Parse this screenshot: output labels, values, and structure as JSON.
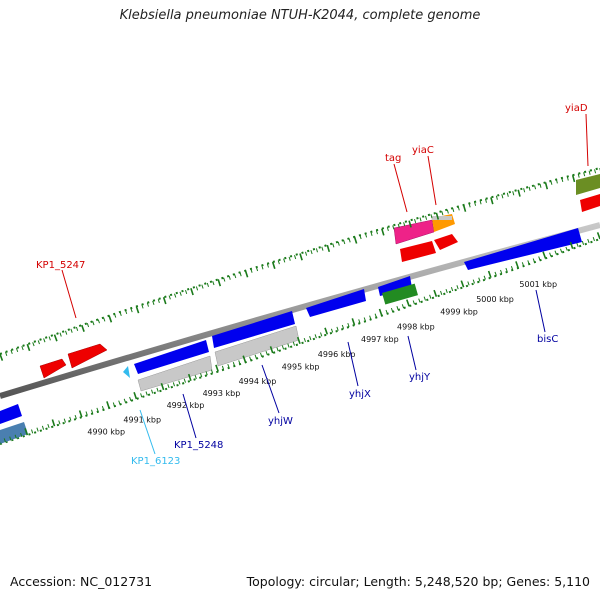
{
  "title": "Klebsiella pneumoniae NTUH-K2044, complete genome",
  "footer": {
    "accession": "Accession: NC_012731",
    "summary": "Topology: circular; Length: 5,248,520 bp; Genes: 5,110"
  },
  "ruler_labels": [
    {
      "text": "4990 kbp",
      "tick": 12
    },
    {
      "text": "4991 kbp",
      "tick": 17
    },
    {
      "text": "4992 kbp",
      "tick": 23
    },
    {
      "text": "4993 kbp",
      "tick": 28
    },
    {
      "text": "4994 kbp",
      "tick": 33
    },
    {
      "text": "4995 kbp",
      "tick": 39
    },
    {
      "text": "4996 kbp",
      "tick": 44
    },
    {
      "text": "4997 kbp",
      "tick": 50
    },
    {
      "text": "4998 kbp",
      "tick": 55
    },
    {
      "text": "4999 kbp",
      "tick": 61
    },
    {
      "text": "5000 kbp",
      "tick": 66
    },
    {
      "text": "5001 kbp",
      "tick": 72
    }
  ],
  "gene_labels": [
    {
      "text": "KP1_5247",
      "color": "#d40000"
    },
    {
      "text": "tag",
      "color": "#d40000"
    },
    {
      "text": "yiaC",
      "color": "#d40000"
    },
    {
      "text": "yiaD",
      "color": "#d40000"
    },
    {
      "text": "KP1_6123",
      "color": "#33bbee"
    },
    {
      "text": "KP1_5248",
      "color": "#0000a0"
    },
    {
      "text": "yhjW",
      "color": "#0000a0"
    },
    {
      "text": "yhjX",
      "color": "#0000a0"
    },
    {
      "text": "yhjY",
      "color": "#0000a0"
    },
    {
      "text": "bisC",
      "color": "#0000a0"
    }
  ],
  "colors": {
    "forward_gene": "#ee0000",
    "reverse_gene": "#0000ee",
    "pseudo_gene": "#c8c8c8",
    "backbone": "#888888",
    "tick": "#1a7a1a",
    "tag_gene": "#ee2288",
    "yiaC_gene": "#ff9900",
    "yiaD_gene": "#6b8e23",
    "yhjY_gene": "#228b22",
    "left_gene": "#4a7fb0",
    "small_gene": "#33bbee"
  }
}
